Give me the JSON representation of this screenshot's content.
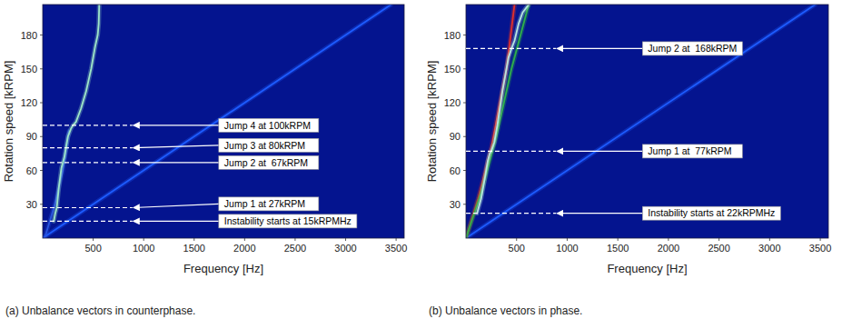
{
  "chart_data": [
    {
      "type": "line",
      "title": "(a) Unbalance vectors in counterphase.",
      "x_label": "Frequency [Hz]",
      "y_label": "Rotation speed [kRPM]",
      "xlim": [
        0,
        3580
      ],
      "ylim": [
        0,
        207
      ],
      "xticks": [
        500,
        1000,
        1500,
        2000,
        2500,
        3000,
        3500
      ],
      "yticks": [
        30,
        60,
        90,
        120,
        150,
        180
      ],
      "series": [
        {
          "color": "#1e5cff",
          "x": [
            0,
            3450
          ],
          "values": [
            0,
            207
          ]
        },
        {
          "color": "#2a55e0",
          "x": [
            20,
            120,
            200,
            260
          ],
          "values": [
            0,
            30,
            60,
            95
          ]
        },
        {
          "color": "#9ee6c8",
          "x": [
            110,
            125,
            140,
            160,
            185,
            200,
            215,
            230,
            250,
            280,
            300,
            330,
            380,
            430,
            480,
            520,
            545,
            555,
            560
          ],
          "values": [
            15,
            22,
            27,
            45,
            62,
            67,
            72,
            80,
            90,
            97,
            100,
            103,
            115,
            130,
            150,
            170,
            180,
            190,
            207
          ]
        }
      ],
      "annotations": [
        {
          "text": "Jump 4 at 100kRPM",
          "y": 100
        },
        {
          "text": "Jump 3 at 80kRPM",
          "y": 80
        },
        {
          "text": "Jump 2 at  67kRPM",
          "y": 67
        },
        {
          "text": "Jump 1 at 27kRPM",
          "y": 27
        },
        {
          "text": "Instability starts at 15kRPMHz",
          "y": 15
        }
      ]
    },
    {
      "type": "line",
      "title": "(b) Unbalance vectors in phase.",
      "x_label": "Frequency [Hz]",
      "y_label": "Rotation speed [kRPM]",
      "xlim": [
        0,
        3580
      ],
      "ylim": [
        0,
        207
      ],
      "xticks": [
        500,
        1000,
        1500,
        2000,
        2500,
        3000,
        3500
      ],
      "yticks": [
        30,
        60,
        90,
        120,
        150,
        180
      ],
      "series": [
        {
          "color": "#1e5cff",
          "x": [
            0,
            3450
          ],
          "values": [
            0,
            207
          ]
        },
        {
          "color": "#e0302a",
          "x": [
            0,
            120,
            250,
            400,
            480
          ],
          "values": [
            0,
            35,
            80,
            150,
            207
          ]
        },
        {
          "color": "#2fb04a",
          "x": [
            0,
            150,
            300,
            450,
            620
          ],
          "values": [
            0,
            40,
            90,
            150,
            207
          ]
        },
        {
          "color": "#b8e8e0",
          "x": [
            110,
            150,
            190,
            215,
            235,
            250,
            280,
            310,
            360,
            420,
            450,
            480,
            520,
            560,
            620
          ],
          "values": [
            22,
            35,
            55,
            68,
            75,
            77,
            85,
            100,
            130,
            160,
            168,
            175,
            190,
            200,
            207
          ]
        }
      ],
      "annotations": [
        {
          "text": "Jump 2 at  168kRPM",
          "y": 168
        },
        {
          "text": "Jump 1 at  77kRPM",
          "y": 77
        },
        {
          "text": "Instability starts at 22kRPMHz",
          "y": 22
        }
      ]
    }
  ]
}
